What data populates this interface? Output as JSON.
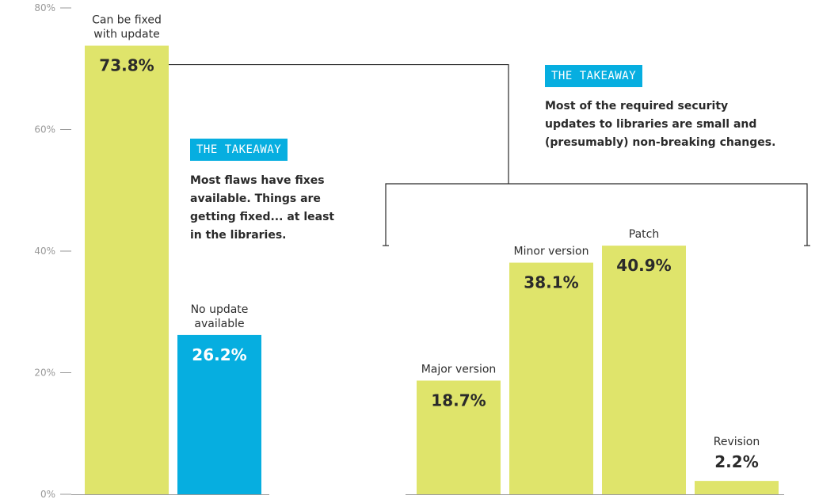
{
  "colors": {
    "lime": "#dfe46b",
    "blue": "#06aee0",
    "axis": "#9a9a9a",
    "text": "#2e2e2e",
    "value_dark": "#2a2a2a",
    "value_light": "#ffffff"
  },
  "chart_data": {
    "type": "bar",
    "ylim": [
      0,
      80
    ],
    "yticks": [
      0,
      20,
      40,
      60,
      80
    ],
    "ytick_labels": [
      "0%",
      "20%",
      "40%",
      "60%",
      "80%"
    ],
    "grid": false,
    "groups": [
      {
        "name": "",
        "bars": [
          {
            "category": "Can be fixed with update",
            "label_lines": [
              "Can be fixed",
              "with update"
            ],
            "value": 73.8,
            "value_label": "73.8%",
            "color": "lime"
          },
          {
            "category": "No update available",
            "label_lines": [
              "No update",
              "available"
            ],
            "value": 26.2,
            "value_label": "26.2%",
            "color": "blue"
          }
        ]
      },
      {
        "name": "",
        "bars": [
          {
            "category": "Major version",
            "label_lines": [
              "Major version"
            ],
            "value": 18.7,
            "value_label": "18.7%",
            "color": "lime"
          },
          {
            "category": "Minor version",
            "label_lines": [
              "Minor version"
            ],
            "value": 38.1,
            "value_label": "38.1%",
            "color": "lime"
          },
          {
            "category": "Patch",
            "label_lines": [
              "Patch"
            ],
            "value": 40.9,
            "value_label": "40.9%",
            "color": "lime"
          },
          {
            "category": "Revision",
            "label_lines": [
              "Revision"
            ],
            "value": 2.2,
            "value_label": "2.2%",
            "color": "lime"
          }
        ]
      }
    ]
  },
  "takeaways": [
    {
      "tag": "THE TAKEAWAY",
      "text_lines": [
        "Most flaws have fixes",
        "available. Things are",
        "getting fixed... at least",
        "in the libraries."
      ]
    },
    {
      "tag": "THE TAKEAWAY",
      "text_lines": [
        "Most of the required security",
        "updates to libraries are small and",
        "(presumably) non-breaking changes."
      ]
    }
  ]
}
